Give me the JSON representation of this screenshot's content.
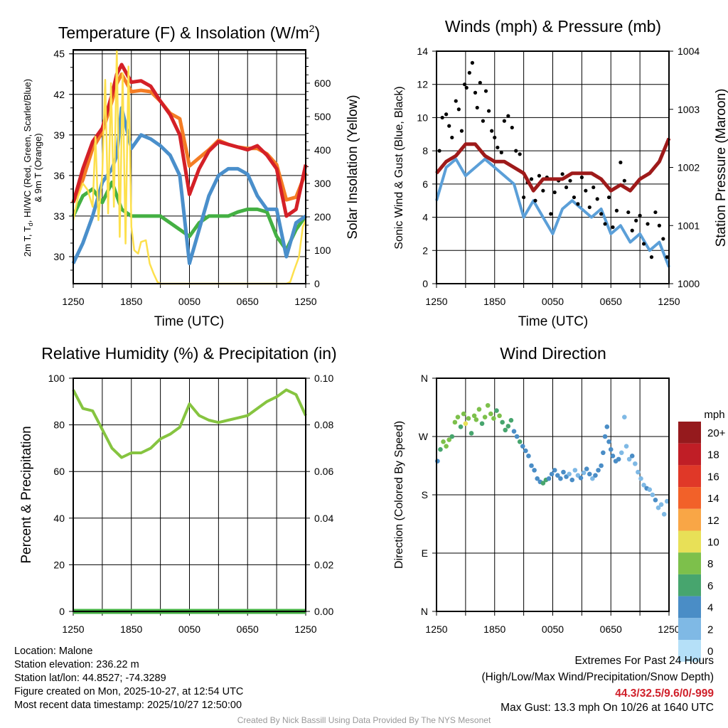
{
  "time_ticks": [
    "1250",
    "1850",
    "0050",
    "0650",
    "1250"
  ],
  "info": {
    "location": "Location: Malone",
    "elevation": "Station elevation: 236.22 m",
    "latlon": "Station lat/lon: 44.8527; -74.3289",
    "created": "Figure created on Mon, 2025-10-27, at 12:54 UTC",
    "recent": "Most recent data timestamp: 2025/10/27 12:50:00"
  },
  "extremes": {
    "title": "Extremes For Past 24 Hours",
    "subtitle": "(High/Low/Max Wind/Precipitation/Snow Depth)",
    "values": "44.3/32.5/9.6/0/-999",
    "max_gust": "Max Gust: 13.3 mph On 10/26 at 1640 UTC"
  },
  "credit": "Created By Nick Bassill Using Data Provided By The NYS Mesonet",
  "colors": {
    "red": "#d42027",
    "orange": "#f47c24",
    "blue": "#4a8fcb",
    "green": "#44b043",
    "yellow": "#fde04d",
    "maroon": "#9e1a1a",
    "wind": "#5b9fd8",
    "gust": "#000000"
  },
  "chart_data": [
    {
      "type": "line",
      "title_main": "Temperature (F) & Insolation (W/m",
      "title_sup": "2",
      "title_end": ")",
      "ylabel_line1_a": "2m T, T",
      "ylabel_line1_sub": "d",
      "ylabel_line1_b": ", HI/WC (Red, Green, Scarlet/Blue)",
      "ylabel_line2": "& 9m T (Orange)",
      "ylabel_right": "Solar Insolation (Yellow)",
      "xlabel": "Time (UTC)",
      "ylim": [
        28,
        45.3
      ],
      "ylim_right": [
        0,
        700
      ],
      "yticks": [
        "30",
        "33",
        "36",
        "39",
        "42",
        "45"
      ],
      "yticks_right": [
        "0",
        "100",
        "200",
        "300",
        "400",
        "500",
        "600"
      ],
      "x_hours": [
        0,
        1,
        2,
        3,
        4,
        4.5,
        5,
        6,
        7,
        8,
        9,
        10,
        11,
        12,
        13,
        14,
        15,
        16,
        17,
        18,
        19,
        20,
        21,
        22,
        23,
        24
      ],
      "series": [
        {
          "name": "2m T",
          "color": "red",
          "values": [
            34,
            36.5,
            38.5,
            39.5,
            42,
            43.5,
            44.2,
            42.9,
            43,
            42.6,
            41.5,
            40.5,
            39,
            34.6,
            36.5,
            37.8,
            38.5,
            38.3,
            38.1,
            37.9,
            38.2,
            37.5,
            36.5,
            33,
            33.5,
            36.8
          ]
        },
        {
          "name": "9m T",
          "color": "orange",
          "values": [
            34,
            35.7,
            38,
            39.2,
            41.5,
            42.8,
            43.5,
            42.2,
            42.3,
            42.2,
            41.5,
            40.6,
            40.2,
            36.7,
            37.3,
            37.9,
            38.6,
            38.3,
            38.1,
            38.0,
            38.0,
            37.6,
            36.8,
            34.2,
            34.4,
            36.2
          ]
        },
        {
          "name": "Scarlet/Blue",
          "color": "blue",
          "values": [
            29.5,
            31,
            33,
            35.5,
            36.5,
            37.5,
            41,
            38,
            39,
            38.7,
            38.2,
            37.5,
            36,
            29.5,
            32,
            34.5,
            36,
            36.5,
            36.5,
            36.1,
            34.5,
            33.5,
            33.5,
            30,
            32.5,
            33
          ]
        },
        {
          "name": "Td",
          "color": "green",
          "values": [
            33,
            34.5,
            35,
            34,
            35.5,
            34.5,
            33.5,
            33,
            33,
            33,
            33,
            32.5,
            32,
            31.5,
            32.5,
            33,
            33,
            33,
            33.3,
            33.5,
            33.5,
            33.3,
            31.5,
            30.5,
            32,
            33
          ]
        }
      ],
      "insolation": [
        [
          0,
          190
        ],
        [
          0.5,
          260
        ],
        [
          1,
          300
        ],
        [
          1.5,
          280
        ],
        [
          2,
          230
        ],
        [
          2.3,
          440
        ],
        [
          2.6,
          190
        ],
        [
          3,
          330
        ],
        [
          3.3,
          610
        ],
        [
          3.6,
          210
        ],
        [
          3.9,
          600
        ],
        [
          4.2,
          230
        ],
        [
          4.5,
          700
        ],
        [
          4.8,
          140
        ],
        [
          5.1,
          630
        ],
        [
          5.4,
          120
        ],
        [
          5.7,
          650
        ],
        [
          6,
          170
        ],
        [
          6.3,
          100
        ],
        [
          6.7,
          90
        ],
        [
          7,
          125
        ],
        [
          7.5,
          130
        ],
        [
          7.9,
          60
        ],
        [
          8.3,
          30
        ],
        [
          8.7,
          5
        ],
        [
          9,
          0
        ],
        [
          22,
          0
        ],
        [
          22.4,
          5
        ],
        [
          22.8,
          40
        ],
        [
          23.3,
          80
        ],
        [
          23.7,
          170
        ],
        [
          24,
          190
        ]
      ]
    },
    {
      "type": "line",
      "title": "Winds (mph) & Pressure (mb)",
      "ylabel": "Sonic Wind & Gust (Blue, Black)",
      "ylabel_right": "Station Pressure (Maroon)",
      "xlabel": "Time (UTC)",
      "ylim": [
        0,
        14
      ],
      "ylim_right": [
        1000,
        1004
      ],
      "yticks": [
        "0",
        "2",
        "4",
        "6",
        "8",
        "10",
        "12",
        "14"
      ],
      "yticks_right": [
        "1000",
        "1001",
        "1002",
        "1003",
        "1004"
      ],
      "x_hours": [
        0,
        1,
        2,
        3,
        4,
        5,
        6,
        7,
        8,
        9,
        10,
        11,
        12,
        13,
        14,
        15,
        16,
        17,
        18,
        19,
        20,
        21,
        22,
        23,
        24
      ],
      "wind": [
        5,
        7,
        7.5,
        6.5,
        7,
        7.5,
        7,
        6.5,
        6,
        4,
        5,
        4,
        3,
        4.5,
        5,
        4.5,
        4,
        4.5,
        3,
        3.5,
        2.5,
        3,
        2,
        2.5,
        1
      ],
      "pressure": [
        1001.9,
        1002.1,
        1002.2,
        1002.4,
        1002.4,
        1002.2,
        1002.1,
        1002.1,
        1002,
        1001.9,
        1001.6,
        1001.8,
        1001.8,
        1001.8,
        1001.9,
        1001.9,
        1001.9,
        1001.8,
        1001.6,
        1001.7,
        1001.6,
        1001.8,
        1001.9,
        1002.1,
        1002.5
      ],
      "gust": [
        [
          0.3,
          8
        ],
        [
          0.6,
          10
        ],
        [
          1,
          10.2
        ],
        [
          1.3,
          9.5
        ],
        [
          1.6,
          8.8
        ],
        [
          2,
          11
        ],
        [
          2.3,
          10.5
        ],
        [
          2.6,
          9.2
        ],
        [
          2.9,
          12
        ],
        [
          3.1,
          11.8
        ],
        [
          3.4,
          12.7
        ],
        [
          3.7,
          13.3
        ],
        [
          4,
          11.5
        ],
        [
          4.2,
          10.6
        ],
        [
          4.5,
          12.1
        ],
        [
          4.8,
          9.8
        ],
        [
          5.1,
          11.6
        ],
        [
          5.4,
          10.4
        ],
        [
          5.7,
          9.2
        ],
        [
          6,
          8.8
        ],
        [
          6.3,
          8.2
        ],
        [
          6.7,
          7.9
        ],
        [
          7,
          9.8
        ],
        [
          7.4,
          10.1
        ],
        [
          7.8,
          9.4
        ],
        [
          8.2,
          8
        ],
        [
          8.6,
          7.8
        ],
        [
          9,
          5.2
        ],
        [
          9.4,
          6.1
        ],
        [
          9.8,
          6.3
        ],
        [
          10.2,
          5
        ],
        [
          10.6,
          6.5
        ],
        [
          11,
          5.6
        ],
        [
          11.4,
          6.4
        ],
        [
          11.8,
          4.2
        ],
        [
          12.2,
          5.5
        ],
        [
          12.6,
          6.2
        ],
        [
          13,
          6.6
        ],
        [
          13.4,
          5.8
        ],
        [
          13.8,
          6.2
        ],
        [
          14.2,
          5.2
        ],
        [
          14.6,
          4.8
        ],
        [
          15,
          6.4
        ],
        [
          15.4,
          5.6
        ],
        [
          15.8,
          4.6
        ],
        [
          16.2,
          5.8
        ],
        [
          16.6,
          5.1
        ],
        [
          17,
          4.2
        ],
        [
          17.4,
          3.6
        ],
        [
          17.8,
          5.2
        ],
        [
          18.2,
          3.4
        ],
        [
          18.6,
          4.4
        ],
        [
          19,
          7.3
        ],
        [
          19.4,
          6.2
        ],
        [
          19.8,
          4.3
        ],
        [
          20.2,
          3.2
        ],
        [
          20.6,
          3.8
        ],
        [
          21,
          4.1
        ],
        [
          21.4,
          2.4
        ],
        [
          21.8,
          3.6
        ],
        [
          22.2,
          1.6
        ],
        [
          22.6,
          4.3
        ],
        [
          23,
          3.5
        ],
        [
          23.4,
          2.7
        ],
        [
          23.8,
          1.6
        ]
      ]
    },
    {
      "type": "line",
      "title": "Relative Humidity (%) & Precipitation (in)",
      "ylabel": "Percent & Precipitation",
      "ylim": [
        0,
        100
      ],
      "ylim_right": [
        0,
        0.1
      ],
      "yticks": [
        "0",
        "20",
        "40",
        "60",
        "80",
        "100"
      ],
      "yticks_right": [
        "0.00",
        "0.02",
        "0.04",
        "0.06",
        "0.08",
        "0.10"
      ],
      "x_hours": [
        0,
        1,
        2,
        3,
        4,
        5,
        6,
        7,
        8,
        9,
        10,
        11,
        12,
        13,
        14,
        15,
        16,
        17,
        18,
        19,
        20,
        21,
        22,
        23,
        24
      ],
      "rh": [
        95,
        87,
        86,
        78,
        70,
        66,
        68,
        68,
        70,
        74,
        76,
        79,
        89,
        84,
        82,
        81,
        82,
        83,
        84,
        87,
        90,
        92,
        95,
        93,
        84
      ],
      "precip": [
        0,
        0,
        0,
        0,
        0,
        0,
        0,
        0,
        0,
        0,
        0,
        0,
        0,
        0,
        0,
        0,
        0,
        0,
        0,
        0,
        0,
        0,
        0,
        0,
        0
      ]
    },
    {
      "type": "scatter",
      "title": "Wind Direction",
      "ylabel": "Direction (Colored By Speed)",
      "yticks": [
        "N",
        "E",
        "S",
        "W",
        "N"
      ],
      "ylim": [
        0,
        360
      ],
      "legend_title": "mph",
      "legend_labels": [
        "20+",
        "18",
        "16",
        "14",
        "12",
        "10",
        "8",
        "6",
        "4",
        "2",
        "0"
      ],
      "legend_colors": [
        "#951a1d",
        "#c01e26",
        "#e03828",
        "#f26129",
        "#f9a646",
        "#e8e057",
        "#7dc04b",
        "#47a56e",
        "#4a8dc6",
        "#7fb9e5",
        "#b5e0f8"
      ],
      "points": [
        [
          0.1,
          232,
          4
        ],
        [
          0.4,
          250,
          6
        ],
        [
          0.7,
          262,
          8
        ],
        [
          1,
          255,
          7
        ],
        [
          1.3,
          265,
          8
        ],
        [
          1.6,
          270,
          6
        ],
        [
          1.9,
          292,
          7
        ],
        [
          2.2,
          300,
          8
        ],
        [
          2.5,
          285,
          6
        ],
        [
          2.8,
          305,
          7
        ],
        [
          3,
          290,
          10
        ],
        [
          3.3,
          298,
          8
        ],
        [
          3.6,
          275,
          6
        ],
        [
          3.9,
          302,
          7
        ],
        [
          4.1,
          296,
          7
        ],
        [
          4.4,
          312,
          8
        ],
        [
          4.7,
          290,
          6
        ],
        [
          5,
          300,
          7
        ],
        [
          5.3,
          318,
          8
        ],
        [
          5.6,
          305,
          7
        ],
        [
          5.9,
          298,
          8
        ],
        [
          6.2,
          310,
          6
        ],
        [
          6.5,
          302,
          7
        ],
        [
          6.8,
          292,
          6
        ],
        [
          7.1,
          280,
          5
        ],
        [
          7.4,
          286,
          6
        ],
        [
          7.7,
          295,
          6
        ],
        [
          8,
          278,
          4
        ],
        [
          8.3,
          270,
          4
        ],
        [
          8.6,
          262,
          5
        ],
        [
          8.9,
          255,
          4
        ],
        [
          9.2,
          248,
          4
        ],
        [
          9.5,
          240,
          4
        ],
        [
          9.8,
          225,
          4
        ],
        [
          10.1,
          218,
          3
        ],
        [
          10.4,
          205,
          4
        ],
        [
          10.7,
          200,
          4
        ],
        [
          11,
          198,
          5
        ],
        [
          11.3,
          203,
          6
        ],
        [
          11.6,
          205,
          4
        ],
        [
          11.9,
          212,
          4
        ],
        [
          12.2,
          218,
          4
        ],
        [
          12.5,
          210,
          4
        ],
        [
          12.8,
          205,
          4
        ],
        [
          13.1,
          215,
          3
        ],
        [
          13.4,
          208,
          4
        ],
        [
          13.7,
          212,
          2
        ],
        [
          14,
          203,
          3
        ],
        [
          14.3,
          218,
          2
        ],
        [
          14.6,
          210,
          2
        ],
        [
          14.9,
          206,
          3
        ],
        [
          15.2,
          214,
          2
        ],
        [
          15.5,
          220,
          4
        ],
        [
          15.8,
          212,
          3
        ],
        [
          16.1,
          205,
          2
        ],
        [
          16.4,
          210,
          4
        ],
        [
          16.7,
          218,
          3
        ],
        [
          17,
          225,
          4
        ],
        [
          17.2,
          245,
          4
        ],
        [
          17.4,
          270,
          4
        ],
        [
          17.6,
          285,
          4
        ],
        [
          17.8,
          262,
          4
        ],
        [
          18,
          250,
          4
        ],
        [
          18.2,
          240,
          4
        ],
        [
          18.5,
          232,
          4
        ],
        [
          18.8,
          235,
          4
        ],
        [
          19.1,
          245,
          2
        ],
        [
          19.4,
          300,
          1
        ],
        [
          19.6,
          255,
          2
        ],
        [
          19.9,
          235,
          2
        ],
        [
          20.2,
          240,
          3
        ],
        [
          20.5,
          228,
          2
        ],
        [
          20.8,
          215,
          2
        ],
        [
          21.1,
          205,
          2
        ],
        [
          21.4,
          195,
          2
        ],
        [
          21.7,
          190,
          3
        ],
        [
          22,
          188,
          2
        ],
        [
          22.3,
          180,
          2
        ],
        [
          22.6,
          172,
          3
        ],
        [
          22.9,
          160,
          2
        ],
        [
          23.2,
          165,
          2
        ],
        [
          23.5,
          150,
          1
        ],
        [
          23.8,
          170,
          2
        ]
      ]
    }
  ]
}
